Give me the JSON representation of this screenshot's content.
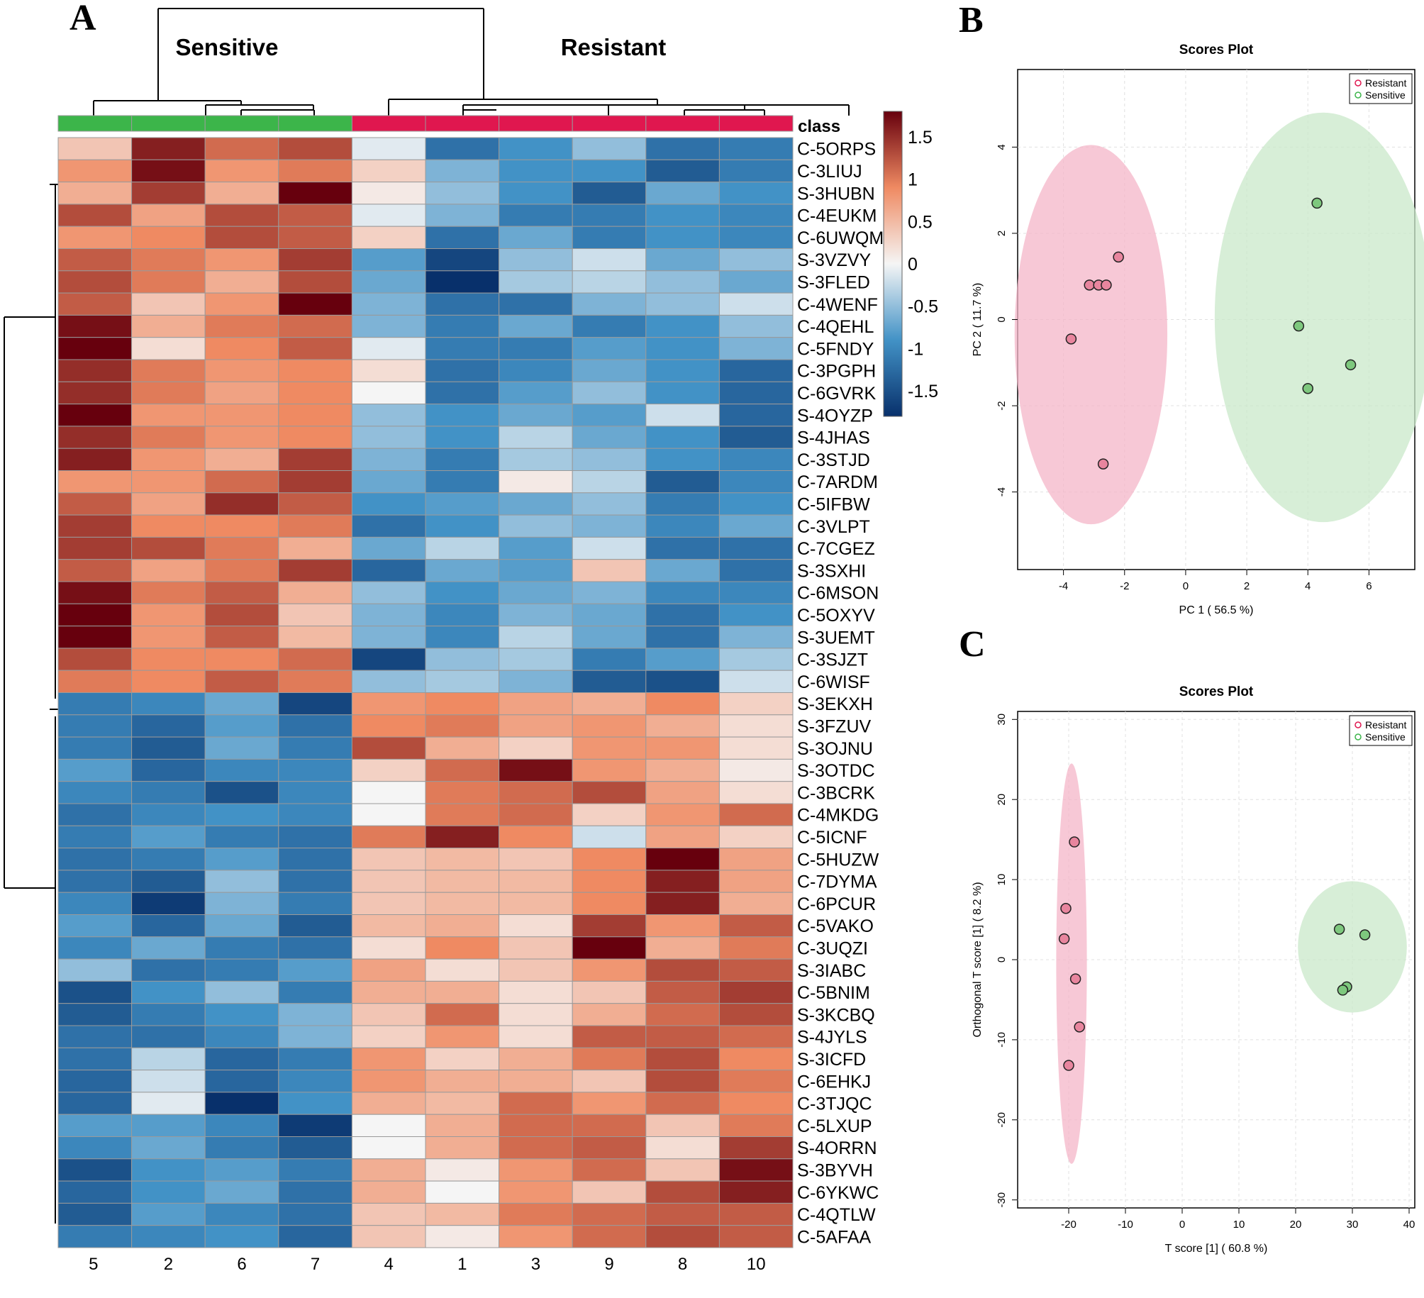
{
  "colors": {
    "low": "#08306b",
    "mid": "#f5f5f5",
    "high": "#67000d",
    "sensitive": "#3cb54a",
    "resistant": "#e0174f",
    "resistant_ellipse": "#f4b6c8",
    "sensitive_ellipse": "#c9e8c9",
    "resistant_point": "#e8859e",
    "sensitive_point": "#7ec87e"
  },
  "chart_data": [
    {
      "panel": "A",
      "type": "heatmap",
      "group_labels": [
        "Sensitive",
        "Resistant"
      ],
      "class_label": "class",
      "columns": [
        "5",
        "2",
        "6",
        "7",
        "4",
        "1",
        "3",
        "9",
        "8",
        "10"
      ],
      "column_classes": [
        "Sensitive",
        "Sensitive",
        "Sensitive",
        "Sensitive",
        "Resistant",
        "Resistant",
        "Resistant",
        "Resistant",
        "Resistant",
        "Resistant"
      ],
      "rows": [
        "C-5ORPS",
        "C-3LIUJ",
        "S-3HUBN",
        "C-4EUKM",
        "C-6UWQM",
        "S-3VZVY",
        "S-3FLED",
        "C-4WENF",
        "C-4QEHL",
        "C-5FNDY",
        "C-3PGPH",
        "C-6GVRK",
        "S-4OYZP",
        "S-4JHAS",
        "C-3STJD",
        "C-7ARDM",
        "C-5IFBW",
        "C-3VLPT",
        "C-7CGEZ",
        "S-3SXHI",
        "C-6MSON",
        "C-5OXYV",
        "S-3UEMT",
        "C-3SJZT",
        "C-6WISF",
        "S-3EKXH",
        "S-3FZUV",
        "S-3OJNU",
        "S-3OTDC",
        "C-3BCRK",
        "C-4MKDG",
        "C-5ICNF",
        "C-5HUZW",
        "C-7DYMA",
        "C-6PCUR",
        "C-5VAKO",
        "C-3UQZI",
        "S-3IABC",
        "C-5BNIM",
        "S-3KCBQ",
        "S-4JYLS",
        "S-3ICFD",
        "C-6EHKJ",
        "C-3TJQC",
        "C-5LXUP",
        "S-4ORRN",
        "S-3BYVH",
        "C-6YKWC",
        "C-4QTLW",
        "C-5AFAA"
      ],
      "values": [
        [
          0.4,
          1.6,
          1.1,
          1.3,
          -0.1,
          -1.2,
          -0.9,
          -0.5,
          -1.2,
          -1.1
        ],
        [
          0.8,
          1.7,
          0.8,
          1.0,
          0.3,
          -0.6,
          -0.9,
          -0.9,
          -1.4,
          -1.1
        ],
        [
          0.6,
          1.4,
          0.6,
          1.8,
          0.1,
          -0.5,
          -0.9,
          -1.4,
          -0.7,
          -0.9
        ],
        [
          1.3,
          0.7,
          1.3,
          1.2,
          -0.1,
          -0.6,
          -1.1,
          -1.1,
          -0.9,
          -1.0
        ],
        [
          0.8,
          0.9,
          1.3,
          1.2,
          0.3,
          -1.2,
          -0.7,
          -1.1,
          -0.9,
          -1.0
        ],
        [
          1.2,
          1.0,
          0.8,
          1.4,
          -0.8,
          -1.6,
          -0.5,
          -0.2,
          -0.7,
          -0.5
        ],
        [
          1.3,
          1.0,
          0.6,
          1.3,
          -0.7,
          -1.8,
          -0.4,
          -0.3,
          -0.5,
          -0.7
        ],
        [
          1.2,
          0.4,
          0.8,
          1.8,
          -0.6,
          -1.2,
          -1.2,
          -0.6,
          -0.5,
          -0.2
        ],
        [
          1.7,
          0.6,
          1.0,
          1.1,
          -0.6,
          -1.1,
          -0.7,
          -1.1,
          -0.9,
          -0.5
        ],
        [
          1.9,
          0.2,
          0.9,
          1.2,
          -0.1,
          -1.1,
          -1.1,
          -0.8,
          -0.9,
          -0.6
        ],
        [
          1.5,
          1.0,
          0.8,
          0.9,
          0.2,
          -1.2,
          -1.0,
          -0.7,
          -0.9,
          -1.3
        ],
        [
          1.5,
          1.0,
          0.7,
          0.9,
          0.0,
          -1.2,
          -0.8,
          -0.5,
          -0.9,
          -1.3
        ],
        [
          1.9,
          0.8,
          0.8,
          0.9,
          -0.5,
          -0.9,
          -0.7,
          -0.8,
          -0.2,
          -1.3
        ],
        [
          1.5,
          1.0,
          0.8,
          0.9,
          -0.5,
          -0.9,
          -0.3,
          -0.7,
          -0.9,
          -1.4
        ],
        [
          1.6,
          0.8,
          0.6,
          1.4,
          -0.6,
          -1.1,
          -0.4,
          -0.5,
          -0.9,
          -1.0
        ],
        [
          0.8,
          0.8,
          1.1,
          1.4,
          -0.7,
          -1.1,
          0.1,
          -0.3,
          -1.4,
          -1.0
        ],
        [
          1.2,
          0.7,
          1.5,
          1.2,
          -0.9,
          -0.8,
          -0.7,
          -0.5,
          -1.1,
          -0.9
        ],
        [
          1.4,
          0.9,
          0.9,
          1.0,
          -1.2,
          -0.9,
          -0.5,
          -0.6,
          -1.0,
          -0.7
        ],
        [
          1.4,
          1.3,
          1.0,
          0.6,
          -0.7,
          -0.3,
          -0.8,
          -0.2,
          -1.2,
          -1.2
        ],
        [
          1.2,
          0.7,
          1.0,
          1.4,
          -1.3,
          -0.7,
          -0.8,
          0.4,
          -0.7,
          -1.2
        ],
        [
          1.7,
          1.0,
          1.2,
          0.6,
          -0.5,
          -0.9,
          -0.7,
          -0.6,
          -1.0,
          -1.0
        ],
        [
          1.8,
          0.8,
          1.3,
          0.4,
          -0.6,
          -1.0,
          -0.6,
          -0.7,
          -1.2,
          -0.9
        ],
        [
          1.8,
          0.8,
          1.2,
          0.5,
          -0.6,
          -1.0,
          -0.3,
          -0.7,
          -1.2,
          -0.6
        ],
        [
          1.3,
          0.9,
          0.9,
          1.1,
          -1.6,
          -0.5,
          -0.4,
          -1.1,
          -0.8,
          -0.4
        ],
        [
          1.0,
          0.9,
          1.2,
          1.0,
          -0.5,
          -0.4,
          -0.6,
          -1.4,
          -1.5,
          -0.2
        ],
        [
          -1.1,
          -1.0,
          -0.7,
          -1.6,
          0.8,
          0.9,
          0.7,
          0.6,
          0.9,
          0.3
        ],
        [
          -1.1,
          -1.3,
          -0.8,
          -1.2,
          0.9,
          1.0,
          0.7,
          0.8,
          0.6,
          0.2
        ],
        [
          -1.1,
          -1.4,
          -0.7,
          -1.1,
          1.3,
          0.6,
          0.3,
          0.8,
          0.8,
          0.2
        ],
        [
          -0.8,
          -1.3,
          -1.0,
          -1.0,
          0.3,
          1.1,
          1.7,
          0.8,
          0.6,
          0.1
        ],
        [
          -1.0,
          -1.1,
          -1.5,
          -1.0,
          0.0,
          1.0,
          1.1,
          1.3,
          0.7,
          0.2
        ],
        [
          -1.2,
          -1.0,
          -0.9,
          -1.0,
          0.0,
          1.0,
          1.1,
          0.3,
          0.8,
          1.1
        ],
        [
          -1.1,
          -0.8,
          -1.1,
          -1.2,
          1.0,
          1.6,
          0.9,
          -0.2,
          0.7,
          0.3
        ],
        [
          -1.2,
          -1.1,
          -0.8,
          -1.2,
          0.4,
          0.5,
          0.4,
          0.9,
          1.8,
          0.7
        ],
        [
          -1.2,
          -1.4,
          -0.5,
          -1.2,
          0.4,
          0.5,
          0.5,
          0.9,
          1.6,
          0.7
        ],
        [
          -1.0,
          -1.7,
          -0.6,
          -1.1,
          0.4,
          0.5,
          0.5,
          0.9,
          1.6,
          0.6
        ],
        [
          -0.8,
          -1.3,
          -0.7,
          -1.4,
          0.5,
          0.6,
          0.2,
          1.4,
          0.8,
          1.2
        ],
        [
          -1.0,
          -0.7,
          -1.1,
          -1.2,
          0.2,
          0.9,
          0.4,
          1.8,
          0.6,
          1.0
        ],
        [
          -0.5,
          -1.2,
          -1.1,
          -0.8,
          0.7,
          0.2,
          0.4,
          0.8,
          1.3,
          1.2
        ],
        [
          -1.5,
          -0.9,
          -0.5,
          -1.1,
          0.6,
          0.6,
          0.2,
          0.4,
          1.2,
          1.4
        ],
        [
          -1.4,
          -1.1,
          -0.9,
          -0.6,
          0.4,
          1.1,
          0.2,
          0.6,
          1.1,
          1.3
        ],
        [
          -1.2,
          -1.2,
          -1.0,
          -0.6,
          0.3,
          0.8,
          0.2,
          1.2,
          1.2,
          1.1
        ],
        [
          -1.2,
          -0.3,
          -1.3,
          -1.1,
          0.8,
          0.3,
          0.6,
          1.0,
          1.3,
          0.9
        ],
        [
          -1.3,
          -0.2,
          -1.3,
          -1.0,
          0.8,
          0.6,
          0.6,
          0.4,
          1.3,
          1.0
        ],
        [
          -1.3,
          -0.1,
          -1.8,
          -0.9,
          0.6,
          0.5,
          1.1,
          0.8,
          1.1,
          0.9
        ],
        [
          -0.8,
          -0.8,
          -1.0,
          -1.7,
          0.0,
          0.6,
          1.1,
          1.1,
          0.4,
          1.0
        ],
        [
          -1.0,
          -0.7,
          -1.1,
          -1.4,
          0.0,
          0.6,
          1.1,
          1.2,
          0.2,
          1.4
        ],
        [
          -1.5,
          -0.9,
          -0.8,
          -1.1,
          0.6,
          0.1,
          0.8,
          1.1,
          0.4,
          1.7
        ],
        [
          -1.3,
          -0.9,
          -0.7,
          -1.2,
          0.6,
          0.0,
          0.8,
          0.4,
          1.3,
          1.6
        ],
        [
          -1.4,
          -0.8,
          -1.0,
          -1.2,
          0.4,
          0.5,
          1.0,
          1.1,
          1.2,
          1.2
        ],
        [
          -1.1,
          -1.0,
          -0.9,
          -1.3,
          0.4,
          0.1,
          0.8,
          1.1,
          1.3,
          1.2
        ]
      ],
      "scale": {
        "ticks": [
          1.5,
          1,
          0.5,
          0,
          -0.5,
          -1,
          -1.5
        ],
        "tick_labels": [
          "1.5",
          "1",
          "0.5",
          "0",
          "-0.5",
          "-1",
          "-1.5"
        ],
        "min": -1.8,
        "max": 1.8
      }
    },
    {
      "panel": "B",
      "type": "scatter",
      "title": "Scores Plot",
      "xlabel": "PC 1 ( 56.5 %)",
      "ylabel": "PC 2 ( 11.7 %)",
      "xlim": [
        -5.5,
        7.5
      ],
      "ylim": [
        -5.8,
        5.8
      ],
      "xticks": [
        -4,
        -2,
        0,
        2,
        4,
        6
      ],
      "yticks": [
        -4,
        -2,
        0,
        2,
        4
      ],
      "legend": [
        "Resistant",
        "Sensitive"
      ],
      "series": [
        {
          "name": "Resistant",
          "points": [
            [
              -2.2,
              1.45
            ],
            [
              -3.15,
              0.8
            ],
            [
              -2.85,
              0.8
            ],
            [
              -2.6,
              0.8
            ],
            [
              -3.75,
              -0.45
            ],
            [
              -2.7,
              -3.35
            ]
          ],
          "ellipse": {
            "cx": -3.1,
            "cy": -0.35,
            "rx": 2.5,
            "ry": 4.4
          }
        },
        {
          "name": "Sensitive",
          "points": [
            [
              4.3,
              2.7
            ],
            [
              3.7,
              -0.15
            ],
            [
              5.4,
              -1.05
            ],
            [
              4.0,
              -1.6
            ]
          ],
          "ellipse": {
            "cx": 4.5,
            "cy": 0.05,
            "rx": 3.55,
            "ry": 4.75
          }
        }
      ]
    },
    {
      "panel": "C",
      "type": "scatter",
      "title": "Scores Plot",
      "xlabel": "T score [1] ( 60.8 %)",
      "ylabel": "Orthogonal T score [1] ( 8.2 %)",
      "xlim": [
        -29,
        41
      ],
      "ylim": [
        -31,
        31
      ],
      "xticks": [
        -20,
        -10,
        0,
        10,
        20,
        30,
        40
      ],
      "yticks": [
        -30,
        -20,
        -10,
        0,
        10,
        20,
        30
      ],
      "legend": [
        "Resistant",
        "Sensitive"
      ],
      "series": [
        {
          "name": "Resistant",
          "points": [
            [
              -19,
              14.7
            ],
            [
              -20.5,
              6.4
            ],
            [
              -20.8,
              2.6
            ],
            [
              -18.8,
              -2.4
            ],
            [
              -18.1,
              -8.4
            ],
            [
              -20,
              -13.2
            ]
          ],
          "ellipse": {
            "cx": -19.5,
            "cy": -0.5,
            "rx": 2.7,
            "ry": 25
          }
        },
        {
          "name": "Sensitive",
          "points": [
            [
              27.7,
              3.8
            ],
            [
              32.2,
              3.1
            ],
            [
              29,
              -3.4
            ],
            [
              28.3,
              -3.8
            ]
          ],
          "ellipse": {
            "cx": 30,
            "cy": 1.6,
            "rx": 9.6,
            "ry": 8.2
          }
        }
      ]
    }
  ],
  "panel_letters": [
    "A",
    "B",
    "C"
  ]
}
